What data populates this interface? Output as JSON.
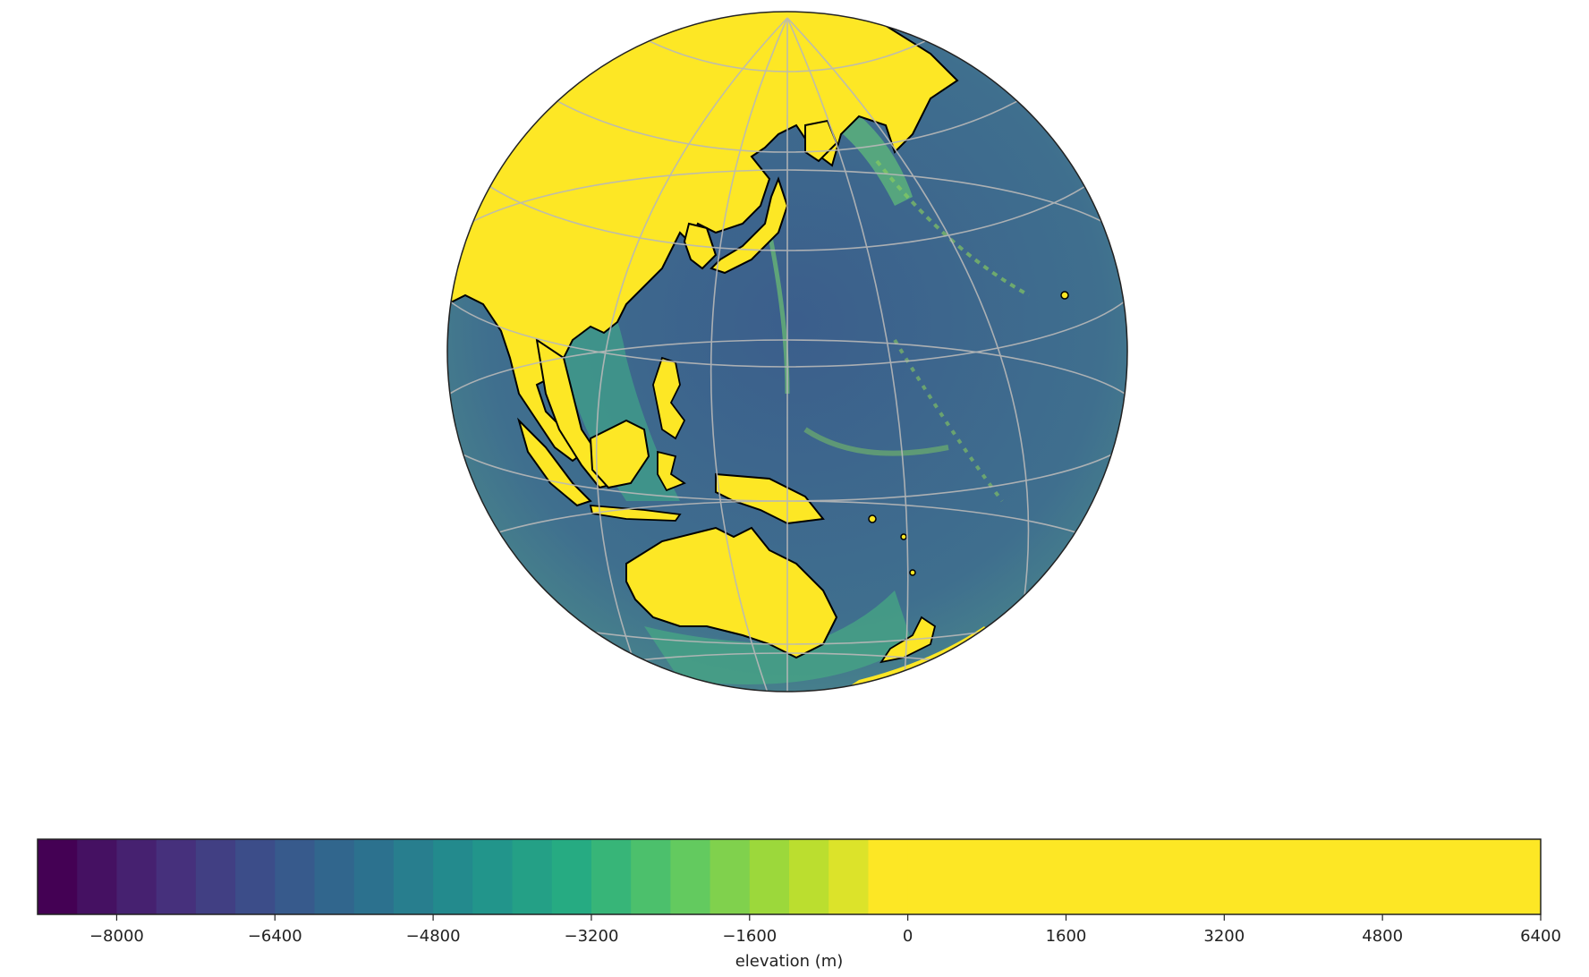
{
  "map": {
    "projection": "orthographic",
    "central_longitude": 140,
    "central_latitude": 20,
    "gridlines": true,
    "coastlines": true,
    "land_color": "#fde725",
    "gridline_color": "#b8b8b8"
  },
  "colorbar": {
    "label": "elevation (m)",
    "colormap": "viridis",
    "vmin": -8800,
    "vmax": 6400,
    "level_step": 400,
    "ticks": [
      "−8000",
      "−6400",
      "−4800",
      "−3200",
      "−1600",
      "0",
      "1600",
      "3200",
      "4800",
      "6400"
    ],
    "tick_values": [
      -8000,
      -6400,
      -4800,
      -3200,
      -1600,
      0,
      1600,
      3200,
      4800,
      6400
    ]
  }
}
